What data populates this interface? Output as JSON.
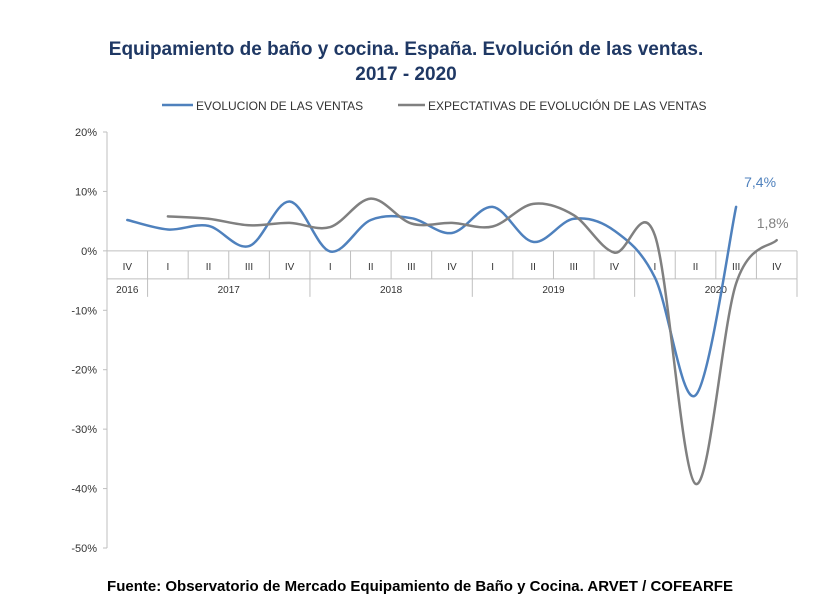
{
  "title_line1": "Equipamiento de baño y cocina. España. Evolución de las ventas.",
  "title_line2": "2017 - 2020",
  "source": "Fuente: Observatorio de Mercado Equipamiento de Baño y Cocina. ARVET / COFEARFE",
  "colors": {
    "ventas": "#4f81bd",
    "expectativas": "#808080",
    "title": "#1f3864"
  },
  "chart_data": {
    "type": "line",
    "categories": [
      "IV",
      "I",
      "II",
      "III",
      "IV",
      "I",
      "II",
      "III",
      "IV",
      "I",
      "II",
      "III",
      "IV",
      "I",
      "II",
      "III",
      "IV"
    ],
    "years": [
      {
        "label": "2016",
        "start": 0,
        "end": 0
      },
      {
        "label": "2017",
        "start": 1,
        "end": 4
      },
      {
        "label": "2018",
        "start": 5,
        "end": 8
      },
      {
        "label": "2019",
        "start": 9,
        "end": 12
      },
      {
        "label": "2020",
        "start": 13,
        "end": 16
      }
    ],
    "y_ticks": [
      "20%",
      "10%",
      "0%",
      "-10%",
      "-20%",
      "-30%",
      "-40%",
      "-50%"
    ],
    "ylim": [
      -50,
      20
    ],
    "series": [
      {
        "name": "EVOLUCION DE LAS VENTAS",
        "color": "#4f81bd",
        "values": [
          5.2,
          3.6,
          4.2,
          0.8,
          8.3,
          -0.1,
          5.2,
          5.5,
          3.0,
          7.4,
          1.5,
          5.4,
          3.4,
          -4.5,
          -24.3,
          7.4,
          null
        ]
      },
      {
        "name": "EXPECTATIVAS DE EVOLUCIÓN DE LAS VENTAS",
        "color": "#808080",
        "values": [
          null,
          5.8,
          5.4,
          4.3,
          4.7,
          4.0,
          8.8,
          4.6,
          4.7,
          4.1,
          7.9,
          6.0,
          -0.3,
          2.6,
          -39.2,
          -5.5,
          1.8
        ]
      }
    ],
    "end_labels": [
      "7,4%",
      "1,8%"
    ]
  }
}
